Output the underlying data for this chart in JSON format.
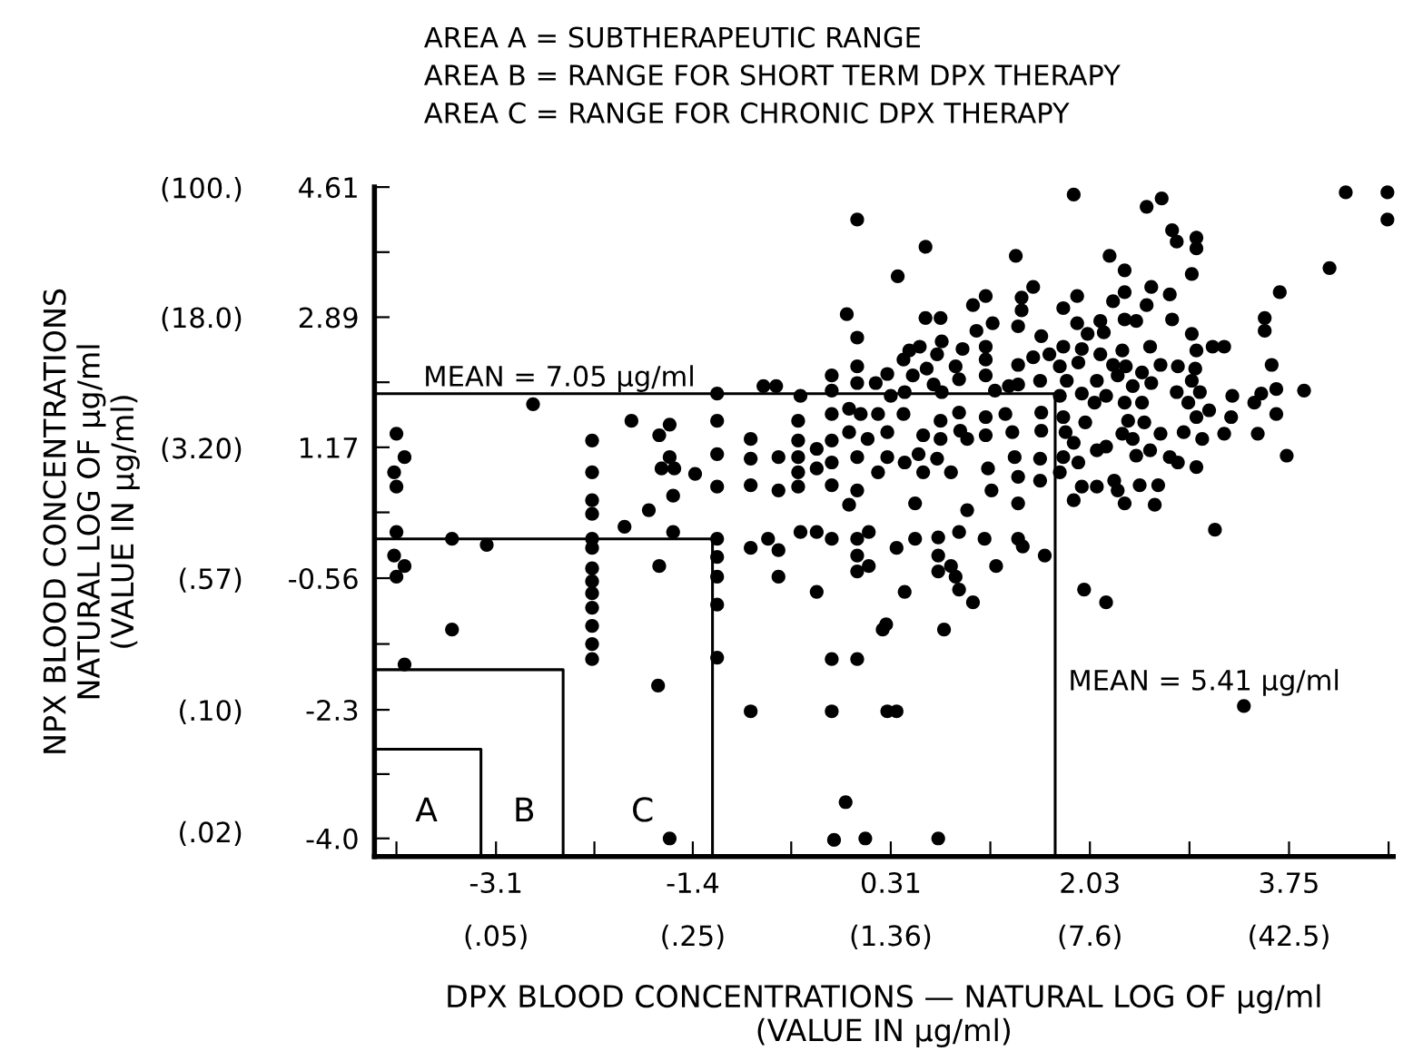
{
  "chart_data": {
    "type": "scatter",
    "xlabel": "DPX BLOOD CONCENTRATIONS — NATURAL LOG OF μg/ml\n(VALUE IN μg/ml)",
    "y2label": "NPX BLOOD CONCENTRATIONS\nNATURAL LOG OF μg/ml\n(VALUE IN μg/ml)",
    "annotations": [
      "AREA A = SUBTHERAPEUTIC RANGE",
      "AREA B = RANGE FOR SHORT TERM DPX THERAPY",
      "AREA C = RANGE FOR CHRONIC DPX THERAPY",
      "A",
      "B",
      "C",
      "MEAN = 7.05 μg/ml",
      "MEAN = 5.41 μg/ml",
      "(.05)",
      "(.25)",
      "(1.36)",
      "(7.6)",
      "(42.5)"
    ],
    "xlim": [
      -4.15,
      4.65
    ],
    "ylim": [
      -4.24,
      4.61
    ],
    "xticks": [
      {
        "value": -3.96,
        "label": null
      },
      -3.1,
      {
        "value": -2.25,
        "label": null
      },
      -1.4,
      {
        "value": -0.55,
        "label": null
      },
      0.31,
      {
        "value": 1.17,
        "label": null
      },
      2.03,
      {
        "value": 2.89,
        "label": null
      },
      3.75,
      {
        "value": 4.61,
        "label": null
      }
    ],
    "yticks": [
      {
        "value": -4.0,
        "label": "-4.0"
      },
      {
        "value": -3.15,
        "label": null
      },
      -2.3,
      {
        "value": -1.43,
        "label": null
      },
      -0.56,
      {
        "value": 0.31,
        "label": null
      },
      1.17,
      {
        "value": 2.03,
        "label": null
      },
      2.89,
      {
        "value": 3.75,
        "label": null
      },
      4.61
    ],
    "log": "y2",
    "y2lim": [
      0.0144,
      100.5
    ],
    "y2ticks": [
      {
        "value": 0.02,
        "label": "(.02)"
      },
      {
        "value": 0.1,
        "label": "(.10)"
      },
      {
        "value": 0.57,
        "label": "(.57)"
      },
      {
        "value": 3.2,
        "label": "(3.20)"
      },
      {
        "value": 18.0,
        "label": "(18.0)"
      },
      {
        "value": 100,
        "label": "(100.)"
      }
    ],
    "grid": false,
    "marker": "circle",
    "series": [
      {
        "color": "#000000",
        "x": [
          -3.96,
          -3.89,
          -3.98,
          -3.96,
          -2.78,
          -2.27,
          -2.27,
          -2.27,
          -1.93,
          -1.69,
          -1.6,
          -1.6,
          -1.67,
          -1.56,
          -1.38,
          -1.57,
          -1.78,
          -3.96,
          -3.48,
          -3.18,
          -3.98,
          -3.89,
          -3.96,
          -3.48,
          -3.89,
          -2.27,
          -2.27,
          -2.27,
          -2.27,
          -2.27,
          -2.27,
          -2.27,
          -2.27,
          -2.27,
          -2.27,
          -1.99,
          -1.69,
          -1.57,
          -1.7,
          -1.6,
          -1.19,
          -1.19,
          -1.19,
          -1.19,
          -1.19,
          -0.9,
          -0.75,
          -0.66,
          -0.66,
          -0.47,
          -0.33,
          -0.2,
          -0.33,
          0.02,
          0.02,
          0.02,
          0.12,
          0.12,
          0.36,
          0.43,
          0.52,
          0.72,
          0.72,
          0.72,
          0.83,
          0.87,
          0.9,
          1.02,
          0.9,
          1.12,
          1.22,
          1.41,
          1.45,
          1.64,
          0.77,
          0.24,
          0.27,
          -0.2,
          0.02,
          -0.9,
          -0.2,
          0.28,
          0.36,
          -0.08,
          -0.18,
          0.09,
          0.72,
          1.98,
          2.17,
          3.11,
          3.36,
          0.02,
          0.61,
          1.39,
          0.37,
          1.54,
          -0.07,
          0.02,
          1.02,
          1.13,
          1.44,
          1.44,
          1.41,
          0.61,
          0.74,
          1.05,
          1.19,
          1.61,
          0.75,
          0.56,
          0.47,
          0.93,
          1.13,
          1.13,
          0.71,
          0.42,
          0.02,
          -0.2,
          0.02,
          0.28,
          0.18,
          0.5,
          0.62,
          0.87,
          1.13,
          1.41,
          1.54,
          1.68,
          0.9,
          1.21,
          1.41,
          1.6,
          -0.47,
          -0.2,
          -0.79,
          -0.68,
          -1.19,
          0.31,
          0.43,
          0.68,
          0.75,
          1.33,
          -1.19,
          -1.19,
          -1.19,
          -0.9,
          -0.9,
          -0.9,
          -0.66,
          -0.66,
          -0.49,
          -0.49,
          -0.49,
          -0.49,
          -0.49,
          -0.33,
          -0.33,
          -0.2,
          -0.2,
          -0.2,
          -0.2,
          -0.05,
          -0.05,
          0.02,
          0.05,
          0.11,
          0.2,
          0.28,
          0.28,
          0.2,
          0.02,
          0.42,
          0.43,
          0.55,
          0.59,
          0.59,
          0.74,
          0.74,
          0.71,
          0.9,
          0.91,
          0.97,
          1.13,
          1.13,
          1.15,
          1.18,
          1.3,
          1.36,
          1.38,
          1.41,
          1.61,
          1.61,
          1.6,
          1.6,
          1.41,
          0.97,
          0.52,
          -0.05,
          0.83,
          1.89,
          2.52,
          2.65,
          4.24,
          4.6,
          4.6,
          2.74,
          2.78,
          2.95,
          2.95,
          2.2,
          2.33,
          2.91,
          4.1,
          3.67,
          2.56,
          2.72,
          2.33,
          2.23,
          2.52,
          1.92,
          1.8,
          2.33,
          2.43,
          2.74,
          2.12,
          1.92,
          2.01,
          2.15,
          2.91,
          3.54,
          3.54,
          1.8,
          1.96,
          2.12,
          2.31,
          2.55,
          2.95,
          3.09,
          3.19,
          1.93,
          1.77,
          2.23,
          2.34,
          2.64,
          2.79,
          2.94,
          1.83,
          2.09,
          2.27,
          2.48,
          2.91,
          3.6,
          1.77,
          1.96,
          2.17,
          2.4,
          2.56,
          2.78,
          2.98,
          3.26,
          3.51,
          3.64,
          3.88,
          3.45,
          2.07,
          2.33,
          2.48,
          2.88,
          1.8,
          1.99,
          2.36,
          2.5,
          2.95,
          3.06,
          3.25,
          3.64,
          1.82,
          2.31,
          2.64,
          2.84,
          3.19,
          3.48,
          1.89,
          2.17,
          2.4,
          3.0,
          1.8,
          2.09,
          2.43,
          2.55,
          2.72,
          2.79,
          2.95,
          3.73,
          1.93,
          1.77,
          2.24,
          1.96,
          2.09,
          2.27,
          2.46,
          2.62,
          1.89,
          2.33,
          2.59
        ],
        "values": [
          1.35,
          1.04,
          0.84,
          0.65,
          1.74,
          1.26,
          0.84,
          0.47,
          1.52,
          1.33,
          1.47,
          1.04,
          0.89,
          0.89,
          0.82,
          0.53,
          0.34,
          0.05,
          -0.04,
          -0.12,
          -0.26,
          -0.4,
          -0.54,
          -1.24,
          -1.7,
          0.29,
          -0.04,
          -0.16,
          -0.43,
          -0.6,
          -0.76,
          -0.95,
          -1.19,
          -1.43,
          -1.63,
          0.12,
          -0.4,
          0.05,
          -1.98,
          -4.0,
          -0.04,
          -0.28,
          -0.54,
          -0.91,
          -1.61,
          -0.16,
          -0.04,
          -0.19,
          -0.54,
          0.05,
          0.05,
          -0.04,
          -0.74,
          -0.04,
          -0.26,
          -0.47,
          -0.4,
          0.05,
          -0.16,
          -0.74,
          -0.04,
          -0.02,
          -0.26,
          -0.47,
          -0.4,
          -0.54,
          -0.71,
          -0.88,
          0.05,
          -0.04,
          -0.4,
          -0.04,
          -0.14,
          -0.26,
          -1.24,
          -1.24,
          -1.17,
          -1.63,
          -1.63,
          -2.32,
          -2.32,
          -2.32,
          -2.32,
          -3.52,
          -4.02,
          -4.0,
          -4.0,
          -0.71,
          -0.88,
          0.08,
          -2.25,
          4.18,
          3.82,
          3.7,
          3.43,
          3.29,
          2.93,
          2.62,
          3.05,
          3.17,
          3.15,
          2.98,
          2.77,
          2.88,
          2.88,
          2.71,
          2.81,
          2.64,
          2.57,
          2.5,
          2.45,
          2.47,
          2.5,
          2.33,
          2.4,
          2.33,
          2.24,
          2.12,
          2.02,
          2.14,
          2.02,
          2.12,
          2.21,
          2.24,
          2.12,
          2.26,
          2.36,
          2.4,
          2.07,
          1.92,
          2.0,
          2.05,
          1.85,
          1.92,
          1.98,
          1.98,
          1.88,
          1.85,
          1.9,
          2.0,
          1.9,
          1.98,
          1.52,
          1.08,
          0.65,
          1.28,
          1.02,
          0.67,
          1.04,
          0.6,
          1.52,
          1.26,
          1.04,
          0.84,
          0.65,
          1.15,
          0.89,
          1.26,
          0.97,
          1.61,
          0.67,
          1.68,
          1.37,
          1.04,
          1.61,
          1.28,
          1.61,
          1.37,
          1.04,
          0.84,
          0.6,
          1.61,
          0.97,
          1.08,
          0.84,
          1.33,
          1.52,
          1.28,
          1.02,
          1.63,
          1.39,
          1.28,
          1.57,
          1.33,
          0.89,
          0.6,
          1.61,
          1.37,
          1.04,
          0.78,
          1.63,
          1.39,
          1.02,
          0.73,
          0.43,
          0.34,
          0.43,
          0.41,
          0.84,
          4.51,
          4.35,
          4.46,
          4.54,
          4.54,
          4.18,
          4.04,
          3.89,
          3.94,
          3.8,
          3.7,
          3.51,
          3.46,
          3.54,
          3.22,
          3.29,
          3.19,
          3.22,
          3.1,
          3.05,
          3.17,
          3.01,
          2.86,
          2.84,
          2.86,
          2.84,
          2.81,
          2.67,
          2.69,
          2.67,
          2.88,
          2.71,
          2.5,
          2.47,
          2.4,
          2.45,
          2.5,
          2.45,
          2.5,
          2.5,
          2.29,
          2.24,
          2.26,
          2.24,
          2.26,
          2.24,
          2.21,
          2.05,
          2.05,
          2.12,
          2.16,
          2.05,
          2.26,
          1.85,
          1.88,
          1.85,
          1.98,
          2.02,
          1.9,
          1.9,
          1.85,
          1.88,
          1.94,
          1.92,
          1.76,
          1.76,
          1.76,
          1.76,
          1.76,
          1.57,
          1.5,
          1.52,
          1.5,
          1.57,
          1.66,
          1.57,
          1.61,
          1.37,
          1.35,
          1.35,
          1.37,
          1.35,
          1.35,
          1.23,
          1.18,
          1.28,
          1.28,
          1.04,
          1.13,
          1.06,
          1.13,
          1.04,
          0.97,
          0.91,
          1.06,
          0.97,
          0.84,
          0.73,
          0.65,
          0.65,
          0.6,
          0.67,
          0.67,
          0.47,
          0.43,
          0.41
        ]
      },
      {
        "type": "line",
        "marker": "none",
        "color": "#000000",
        "x": [
          -4.15,
          -3.23,
          -3.23
        ],
        "values": [
          -2.82,
          -2.82,
          -4.24
        ]
      },
      {
        "type": "line",
        "marker": "none",
        "color": "#000000",
        "x": [
          -4.15,
          -2.52,
          -2.52
        ],
        "values": [
          -1.77,
          -1.77,
          -4.24
        ]
      },
      {
        "type": "line",
        "marker": "none",
        "color": "#000000",
        "x": [
          -4.15,
          -1.23,
          -1.23
        ],
        "values": [
          -0.04,
          -0.04,
          -4.24
        ]
      },
      {
        "type": "line",
        "marker": "none",
        "color": "#000000",
        "x": [
          -4.15,
          1.73,
          1.73
        ],
        "values": [
          1.88,
          1.88,
          -4.24
        ]
      }
    ]
  }
}
